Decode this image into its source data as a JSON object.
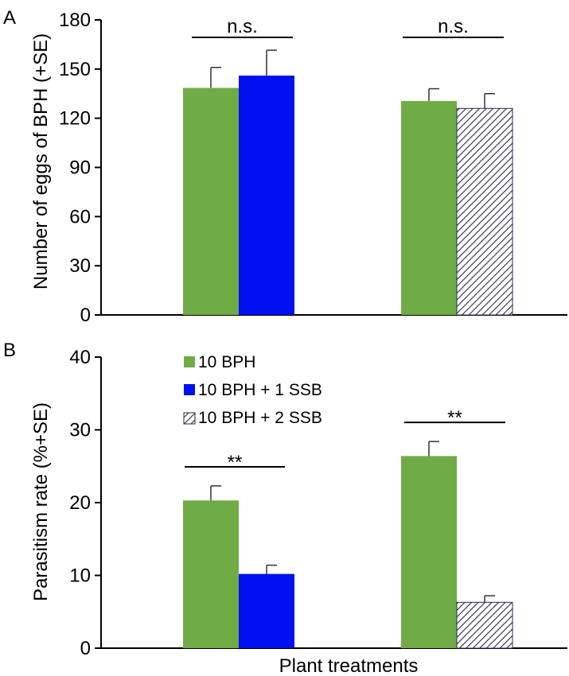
{
  "colors": {
    "10 BPH": "#6fac46",
    "10 BPH + 1 SSB": "#0010f0",
    "10 BPH + 2 SSB": "hatched"
  },
  "chart_data": [
    {
      "type": "bar",
      "panel": "A",
      "ylabel": "Number of eggs of BPH (+SE)",
      "xlabel": "",
      "ylim": [
        0,
        180
      ],
      "yticks": [
        0,
        30,
        60,
        90,
        120,
        150,
        180
      ],
      "legend": "none",
      "groups": [
        {
          "significance": "n.s.",
          "bars": [
            {
              "series": "10 BPH",
              "value": 138.5,
              "se": 12.5
            },
            {
              "series": "10 BPH + 1 SSB",
              "value": 146,
              "se": 15.5
            }
          ]
        },
        {
          "significance": "n.s.",
          "bars": [
            {
              "series": "10 BPH",
              "value": 130.5,
              "se": 7.5
            },
            {
              "series": "10 BPH + 2 SSB",
              "value": 126,
              "se": 9
            }
          ]
        }
      ]
    },
    {
      "type": "bar",
      "panel": "B",
      "ylabel": "Parasitism rate (%+SE)",
      "xlabel": "Plant treatments",
      "ylim": [
        0,
        40
      ],
      "yticks": [
        0,
        10,
        20,
        30,
        40
      ],
      "legend": "top-left",
      "legend_entries": [
        "10 BPH",
        "10 BPH + 1 SSB",
        "10 BPH + 2 SSB"
      ],
      "groups": [
        {
          "significance": "**",
          "bars": [
            {
              "series": "10 BPH",
              "value": 20.3,
              "se": 2
            },
            {
              "series": "10 BPH + 1 SSB",
              "value": 10.2,
              "se": 1.2
            }
          ]
        },
        {
          "significance": "**",
          "bars": [
            {
              "series": "10 BPH",
              "value": 26.4,
              "se": 2
            },
            {
              "series": "10 BPH + 2 SSB",
              "value": 6.3,
              "se": 0.9
            }
          ]
        }
      ]
    }
  ]
}
